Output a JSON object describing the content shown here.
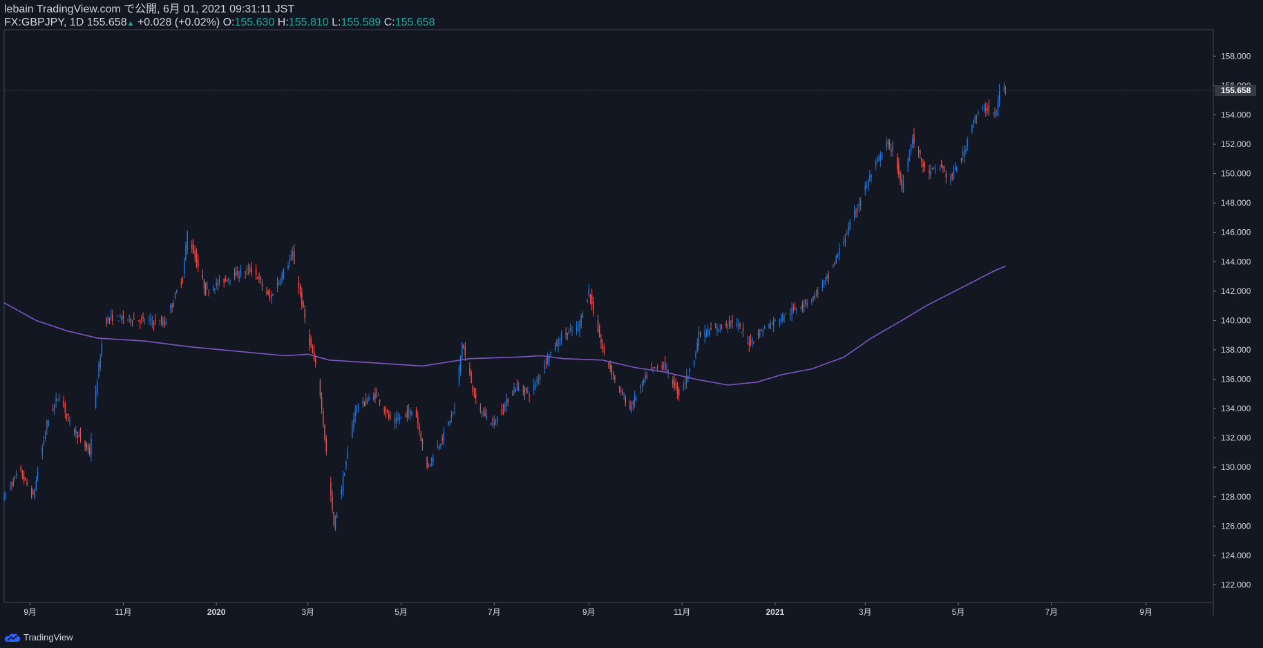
{
  "header": {
    "line1": "lebain TradingView.com で公開, 6月 01, 2021 09:31:11 JST",
    "symbol": "FX:GBPJPY, 1D",
    "last": "155.658",
    "change": "+0.028 (+0.02%)",
    "o_label": "O:",
    "o": "155.630",
    "h_label": "H:",
    "h": "155.810",
    "l_label": "L:",
    "l": "155.589",
    "c_label": "C:",
    "c": "155.658"
  },
  "footer": {
    "brand": "TradingView"
  },
  "colors": {
    "background": "#131722",
    "up": "#2679d6",
    "down": "#ef5350",
    "ma": "#7e57c2",
    "axis_text": "#d1d4dc",
    "positive": "#26a69a"
  },
  "chart_data": {
    "type": "candlestick",
    "symbol": "FX:GBPJPY",
    "interval": "1D",
    "ylim": [
      120.8,
      159.8
    ],
    "yticks": [
      122,
      124,
      126,
      128,
      130,
      132,
      134,
      136,
      138,
      140,
      142,
      144,
      146,
      148,
      150,
      152,
      154,
      156,
      158
    ],
    "xticks": [
      {
        "label": "9月",
        "date": "2019-09-01"
      },
      {
        "label": "11月",
        "date": "2019-11-01"
      },
      {
        "label": "2020",
        "date": "2020-01-01"
      },
      {
        "label": "3月",
        "date": "2020-03-01"
      },
      {
        "label": "5月",
        "date": "2020-05-01"
      },
      {
        "label": "7月",
        "date": "2020-07-01"
      },
      {
        "label": "9月",
        "date": "2020-09-01"
      },
      {
        "label": "11月",
        "date": "2020-11-01"
      },
      {
        "label": "2021",
        "date": "2021-01-01"
      },
      {
        "label": "3月",
        "date": "2021-03-01"
      },
      {
        "label": "5月",
        "date": "2021-05-01"
      },
      {
        "label": "7月",
        "date": "2021-07-01"
      },
      {
        "label": "9月",
        "date": "2021-09-01"
      }
    ],
    "x_range": [
      "2019-08-15",
      "2021-10-15"
    ],
    "last_price": 155.658,
    "price_path": [
      [
        "2019-08-15",
        128.0
      ],
      [
        "2019-08-25",
        129.8
      ],
      [
        "2019-09-03",
        128.0
      ],
      [
        "2019-09-12",
        133.0
      ],
      [
        "2019-09-20",
        135.0
      ],
      [
        "2019-09-27",
        133.0
      ],
      [
        "2019-10-10",
        131.0
      ],
      [
        "2019-10-15",
        136.0
      ],
      [
        "2019-10-20",
        140.0
      ],
      [
        "2019-10-25",
        140.2
      ],
      [
        "2019-11-15",
        140.0
      ],
      [
        "2019-11-28",
        139.8
      ],
      [
        "2019-12-10",
        143.0
      ],
      [
        "2019-12-13",
        146.0
      ],
      [
        "2019-12-25",
        142.0
      ],
      [
        "2020-01-10",
        143.0
      ],
      [
        "2020-01-25",
        143.5
      ],
      [
        "2020-02-05",
        141.5
      ],
      [
        "2020-02-20",
        144.5
      ],
      [
        "2020-03-01",
        139.0
      ],
      [
        "2020-03-08",
        136.0
      ],
      [
        "2020-03-12",
        132.0
      ],
      [
        "2020-03-18",
        126.0
      ],
      [
        "2020-03-22",
        128.0
      ],
      [
        "2020-04-01",
        134.0
      ],
      [
        "2020-04-15",
        135.0
      ],
      [
        "2020-04-25",
        133.0
      ],
      [
        "2020-05-10",
        134.0
      ],
      [
        "2020-05-18",
        130.0
      ],
      [
        "2020-05-28",
        132.0
      ],
      [
        "2020-06-05",
        134.0
      ],
      [
        "2020-06-10",
        138.5
      ],
      [
        "2020-06-20",
        134.0
      ],
      [
        "2020-07-01",
        133.0
      ],
      [
        "2020-07-15",
        135.5
      ],
      [
        "2020-07-25",
        135.0
      ],
      [
        "2020-08-05",
        137.5
      ],
      [
        "2020-08-15",
        139.0
      ],
      [
        "2020-08-25",
        139.5
      ],
      [
        "2020-09-01",
        142.0
      ],
      [
        "2020-09-10",
        138.0
      ],
      [
        "2020-09-20",
        135.5
      ],
      [
        "2020-09-28",
        134.0
      ],
      [
        "2020-10-10",
        136.5
      ],
      [
        "2020-10-20",
        137.0
      ],
      [
        "2020-10-30",
        135.0
      ],
      [
        "2020-11-08",
        137.0
      ],
      [
        "2020-11-12",
        139.0
      ],
      [
        "2020-11-25",
        139.5
      ],
      [
        "2020-12-05",
        140.0
      ],
      [
        "2020-12-15",
        138.5
      ],
      [
        "2020-12-25",
        139.5
      ],
      [
        "2021-01-10",
        140.5
      ],
      [
        "2021-01-25",
        141.5
      ],
      [
        "2021-02-05",
        143.0
      ],
      [
        "2021-02-15",
        145.5
      ],
      [
        "2021-02-25",
        148.0
      ],
      [
        "2021-03-05",
        150.0
      ],
      [
        "2021-03-15",
        152.0
      ],
      [
        "2021-03-20",
        151.5
      ],
      [
        "2021-03-25",
        149.0
      ],
      [
        "2021-04-01",
        152.5
      ],
      [
        "2021-04-10",
        150.0
      ],
      [
        "2021-04-20",
        150.5
      ],
      [
        "2021-04-25",
        149.5
      ],
      [
        "2021-05-05",
        151.5
      ],
      [
        "2021-05-10",
        153.5
      ],
      [
        "2021-05-18",
        154.5
      ],
      [
        "2021-05-26",
        154.0
      ],
      [
        "2021-05-28",
        155.8
      ],
      [
        "2021-06-01",
        155.658
      ]
    ],
    "ma_line": [
      [
        "2019-08-15",
        141.2
      ],
      [
        "2019-09-05",
        140.0
      ],
      [
        "2019-09-25",
        139.3
      ],
      [
        "2019-10-15",
        138.8
      ],
      [
        "2019-11-15",
        138.6
      ],
      [
        "2019-12-15",
        138.2
      ],
      [
        "2020-01-15",
        137.9
      ],
      [
        "2020-02-15",
        137.6
      ],
      [
        "2020-03-01",
        137.7
      ],
      [
        "2020-03-15",
        137.3
      ],
      [
        "2020-04-15",
        137.1
      ],
      [
        "2020-05-15",
        136.9
      ],
      [
        "2020-06-15",
        137.4
      ],
      [
        "2020-07-15",
        137.5
      ],
      [
        "2020-08-01",
        137.6
      ],
      [
        "2020-08-15",
        137.4
      ],
      [
        "2020-09-10",
        137.3
      ],
      [
        "2020-10-01",
        136.8
      ],
      [
        "2020-10-20",
        136.5
      ],
      [
        "2020-11-10",
        136.0
      ],
      [
        "2020-12-01",
        135.6
      ],
      [
        "2020-12-20",
        135.8
      ],
      [
        "2021-01-05",
        136.3
      ],
      [
        "2021-01-25",
        136.7
      ],
      [
        "2021-02-15",
        137.5
      ],
      [
        "2021-03-05",
        138.8
      ],
      [
        "2021-03-25",
        140.0
      ],
      [
        "2021-04-10",
        141.0
      ],
      [
        "2021-04-25",
        141.8
      ],
      [
        "2021-05-10",
        142.6
      ],
      [
        "2021-05-25",
        143.4
      ],
      [
        "2021-06-01",
        143.7
      ]
    ]
  }
}
